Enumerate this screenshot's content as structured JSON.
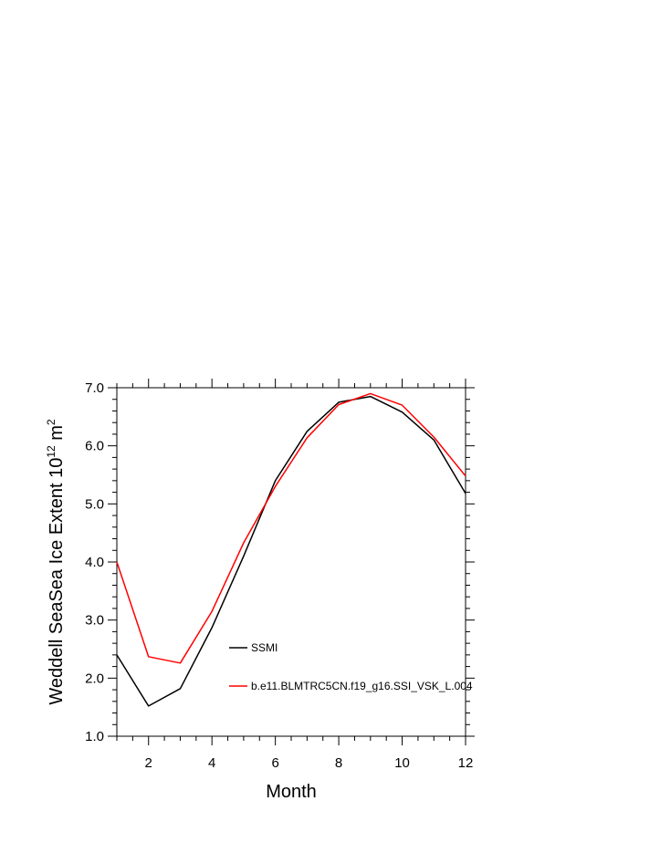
{
  "chart_data": {
    "type": "line",
    "xlabel": "Month",
    "ylabel": "Weddell SeaSea Ice Extent 10",
    "ylabel_sup": "12",
    "ylabel_unit": " m",
    "ylabel_unit_sup": "2",
    "xlim": [
      1,
      12
    ],
    "ylim": [
      1.0,
      7.0
    ],
    "x_ticks": [
      2,
      4,
      6,
      8,
      10,
      12
    ],
    "x_tick_labels": [
      "2",
      "4",
      "6",
      "8",
      "10",
      "12"
    ],
    "y_ticks": [
      1.0,
      2.0,
      3.0,
      4.0,
      5.0,
      6.0,
      7.0
    ],
    "y_tick_labels": [
      "1.0",
      "2.0",
      "3.0",
      "4.0",
      "5.0",
      "6.0",
      "7.0"
    ],
    "grid": false,
    "legend_position": "inside-lower-right",
    "x": [
      1,
      2,
      3,
      4,
      5,
      6,
      7,
      8,
      9,
      10,
      11,
      12
    ],
    "series": [
      {
        "name": "SSMI",
        "color": "#000000",
        "values": [
          2.4,
          1.52,
          1.82,
          2.87,
          4.1,
          5.4,
          6.25,
          6.75,
          6.85,
          6.58,
          6.1,
          5.18
        ]
      },
      {
        "name": "b.e11.BLMTRC5CN.f19_g16.SSI_VSK_L.004",
        "color": "#ff0000",
        "values": [
          4.0,
          2.37,
          2.26,
          3.15,
          4.33,
          5.3,
          6.14,
          6.71,
          6.9,
          6.7,
          6.15,
          5.48
        ]
      }
    ]
  }
}
